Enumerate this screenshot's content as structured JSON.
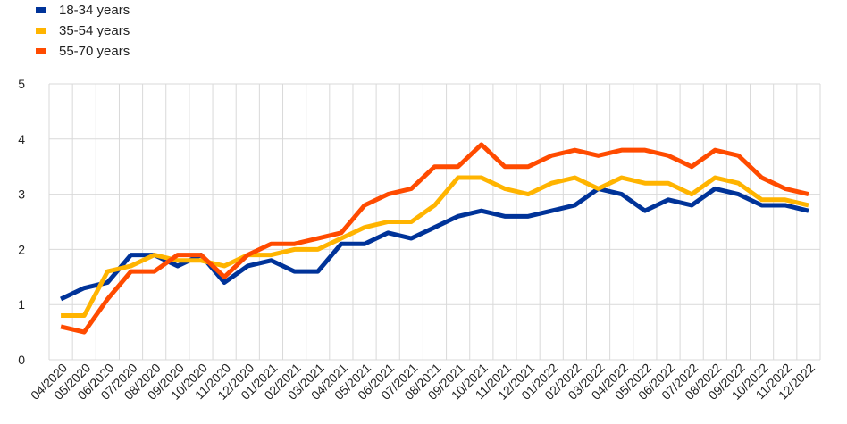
{
  "chart_data": {
    "type": "line",
    "title": "",
    "xlabel": "",
    "ylabel": "",
    "ylim": [
      0,
      5
    ],
    "yticks": [
      0,
      1,
      2,
      3,
      4,
      5
    ],
    "grid": true,
    "legend_position": "top-left",
    "categories": [
      "04/2020",
      "05/2020",
      "06/2020",
      "07/2020",
      "08/2020",
      "09/2020",
      "10/2020",
      "11/2020",
      "12/2020",
      "01/2021",
      "02/2021",
      "03/2021",
      "04/2021",
      "05/2021",
      "06/2021",
      "07/2021",
      "08/2021",
      "09/2021",
      "10/2021",
      "11/2021",
      "12/2021",
      "01/2022",
      "02/2022",
      "03/2022",
      "04/2022",
      "05/2022",
      "06/2022",
      "07/2022",
      "08/2022",
      "09/2022",
      "10/2022",
      "11/2022",
      "12/2022"
    ],
    "series": [
      {
        "name": "18-34 years",
        "color": "#003399",
        "values": [
          1.1,
          1.3,
          1.4,
          1.9,
          1.9,
          1.7,
          1.9,
          1.4,
          1.7,
          1.8,
          1.6,
          1.6,
          2.1,
          2.1,
          2.3,
          2.2,
          2.4,
          2.6,
          2.7,
          2.6,
          2.6,
          2.7,
          2.8,
          3.1,
          3.0,
          2.7,
          2.9,
          2.8,
          3.1,
          3.0,
          2.8,
          2.8,
          2.7
        ]
      },
      {
        "name": "35-54 years",
        "color": "#FFB400",
        "values": [
          0.8,
          0.8,
          1.6,
          1.7,
          1.9,
          1.8,
          1.8,
          1.7,
          1.9,
          1.9,
          2.0,
          2.0,
          2.2,
          2.4,
          2.5,
          2.5,
          2.8,
          3.3,
          3.3,
          3.1,
          3.0,
          3.2,
          3.3,
          3.1,
          3.3,
          3.2,
          3.2,
          3.0,
          3.3,
          3.2,
          2.9,
          2.9,
          2.8
        ]
      },
      {
        "name": "55-70 years",
        "color": "#FF4B00",
        "values": [
          0.6,
          0.5,
          1.1,
          1.6,
          1.6,
          1.9,
          1.9,
          1.5,
          1.9,
          2.1,
          2.1,
          2.2,
          2.3,
          2.8,
          3.0,
          3.1,
          3.5,
          3.5,
          3.9,
          3.5,
          3.5,
          3.7,
          3.8,
          3.7,
          3.8,
          3.8,
          3.7,
          3.5,
          3.8,
          3.7,
          3.3,
          3.1,
          3.0
        ]
      }
    ]
  }
}
